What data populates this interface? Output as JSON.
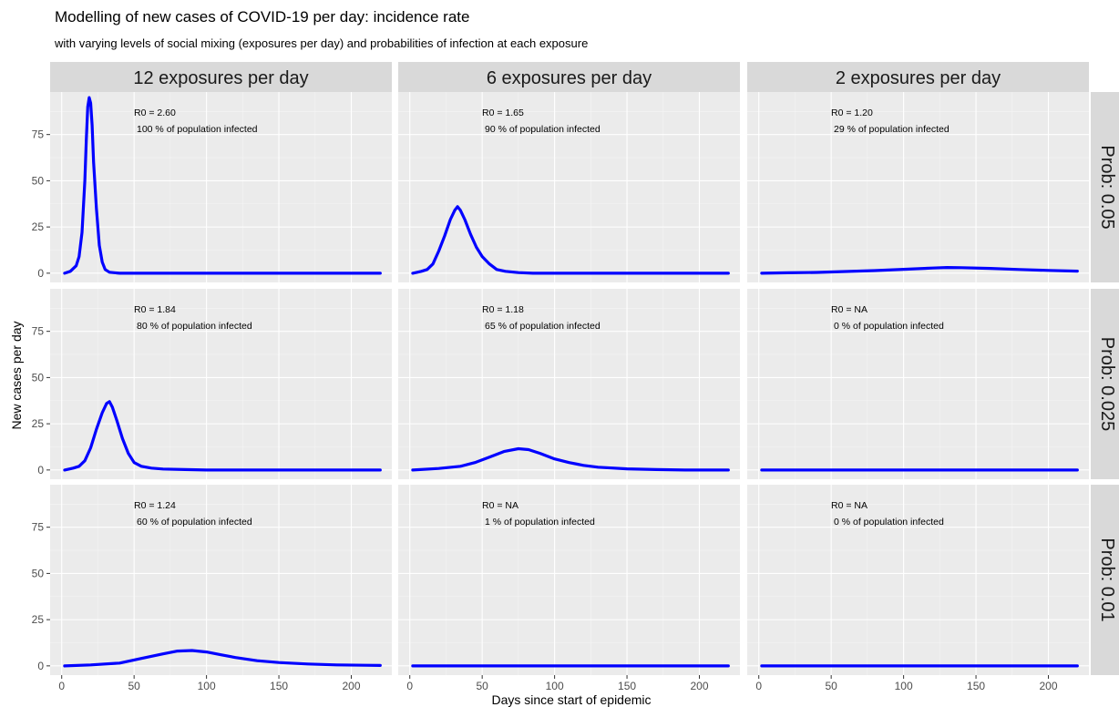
{
  "title": "Modelling of new cases of COVID-19 per day: incidence rate",
  "subtitle": "with varying levels of social mixing (exposures per day) and probabilities of infection at each exposure",
  "chart_data": {
    "type": "line",
    "facet_cols": [
      "12 exposures per day",
      "6 exposures per day",
      "2 exposures per day"
    ],
    "facet_rows": [
      "Prob: 0.05",
      "Prob: 0.025",
      "Prob: 0.01"
    ],
    "xlabel": "Days since start of epidemic",
    "ylabel": "New cases per day",
    "xlim": [
      -8,
      228
    ],
    "ylim": [
      -5,
      98
    ],
    "x_ticks": [
      0,
      50,
      100,
      150,
      200
    ],
    "y_ticks": [
      0,
      25,
      50,
      75
    ],
    "line_color": "#0000ff",
    "panel_bg": "#ebebeb",
    "strip_bg": "#d9d9d9",
    "panels": [
      {
        "row": 0,
        "col": 0,
        "r0": "R0 = 2.60",
        "infected": "100 % of population infected",
        "points": [
          [
            2,
            0
          ],
          [
            6,
            1
          ],
          [
            10,
            4
          ],
          [
            12,
            9
          ],
          [
            14,
            22
          ],
          [
            16,
            50
          ],
          [
            17,
            72
          ],
          [
            18,
            90
          ],
          [
            19,
            95
          ],
          [
            20,
            92
          ],
          [
            21,
            80
          ],
          [
            22,
            60
          ],
          [
            24,
            35
          ],
          [
            26,
            15
          ],
          [
            28,
            6
          ],
          [
            30,
            2
          ],
          [
            33,
            0.5
          ],
          [
            40,
            0
          ],
          [
            220,
            0
          ]
        ]
      },
      {
        "row": 0,
        "col": 1,
        "r0": "R0 = 1.65",
        "infected": "90 % of population infected",
        "points": [
          [
            2,
            0
          ],
          [
            8,
            1
          ],
          [
            12,
            2
          ],
          [
            16,
            5
          ],
          [
            20,
            12
          ],
          [
            24,
            20
          ],
          [
            28,
            29
          ],
          [
            31,
            34
          ],
          [
            33,
            36
          ],
          [
            35,
            34
          ],
          [
            38,
            29
          ],
          [
            42,
            21
          ],
          [
            46,
            14
          ],
          [
            50,
            9
          ],
          [
            55,
            5
          ],
          [
            60,
            2
          ],
          [
            66,
            1
          ],
          [
            75,
            0.3
          ],
          [
            85,
            0
          ],
          [
            220,
            0
          ]
        ]
      },
      {
        "row": 0,
        "col": 2,
        "r0": "R0 = 1.20",
        "infected": "29 % of population infected",
        "points": [
          [
            2,
            0
          ],
          [
            20,
            0.2
          ],
          [
            40,
            0.4
          ],
          [
            60,
            0.9
          ],
          [
            80,
            1.4
          ],
          [
            100,
            2.1
          ],
          [
            120,
            2.8
          ],
          [
            130,
            3.1
          ],
          [
            140,
            3.0
          ],
          [
            160,
            2.6
          ],
          [
            180,
            2.0
          ],
          [
            200,
            1.5
          ],
          [
            220,
            1.1
          ]
        ]
      },
      {
        "row": 1,
        "col": 0,
        "r0": "R0 = 1.84",
        "infected": "80 % of population infected",
        "points": [
          [
            2,
            0
          ],
          [
            8,
            1
          ],
          [
            12,
            2
          ],
          [
            16,
            5
          ],
          [
            20,
            12
          ],
          [
            24,
            22
          ],
          [
            28,
            31
          ],
          [
            31,
            36
          ],
          [
            33,
            37
          ],
          [
            35,
            34
          ],
          [
            38,
            27
          ],
          [
            42,
            17
          ],
          [
            46,
            9
          ],
          [
            50,
            4
          ],
          [
            55,
            2
          ],
          [
            62,
            1
          ],
          [
            70,
            0.5
          ],
          [
            85,
            0.2
          ],
          [
            100,
            0
          ],
          [
            220,
            0
          ]
        ]
      },
      {
        "row": 1,
        "col": 1,
        "r0": "R0 = 1.18",
        "infected": "65 % of population infected",
        "points": [
          [
            2,
            0
          ],
          [
            20,
            0.8
          ],
          [
            35,
            2
          ],
          [
            45,
            4
          ],
          [
            55,
            7
          ],
          [
            65,
            10
          ],
          [
            75,
            11.5
          ],
          [
            82,
            11
          ],
          [
            90,
            9
          ],
          [
            100,
            6
          ],
          [
            110,
            4
          ],
          [
            120,
            2.5
          ],
          [
            130,
            1.5
          ],
          [
            150,
            0.6
          ],
          [
            170,
            0.2
          ],
          [
            190,
            0
          ],
          [
            220,
            0
          ]
        ]
      },
      {
        "row": 1,
        "col": 2,
        "r0": "R0 =   NA",
        "infected": "0 % of population infected",
        "points": [
          [
            2,
            0
          ],
          [
            220,
            0
          ]
        ]
      },
      {
        "row": 2,
        "col": 0,
        "r0": "R0 = 1.24",
        "infected": "60 % of population infected",
        "points": [
          [
            2,
            0
          ],
          [
            20,
            0.5
          ],
          [
            40,
            1.5
          ],
          [
            55,
            4
          ],
          [
            70,
            6.5
          ],
          [
            80,
            8
          ],
          [
            90,
            8.3
          ],
          [
            100,
            7.5
          ],
          [
            110,
            6
          ],
          [
            120,
            4.5
          ],
          [
            135,
            2.8
          ],
          [
            150,
            1.8
          ],
          [
            170,
            1
          ],
          [
            190,
            0.5
          ],
          [
            210,
            0.3
          ],
          [
            220,
            0.2
          ]
        ]
      },
      {
        "row": 2,
        "col": 1,
        "r0": "R0 =   NA",
        "infected": "1 % of population infected",
        "points": [
          [
            2,
            0
          ],
          [
            220,
            0
          ]
        ]
      },
      {
        "row": 2,
        "col": 2,
        "r0": "R0 =   NA",
        "infected": "0 % of population infected",
        "points": [
          [
            2,
            0
          ],
          [
            220,
            0
          ]
        ]
      }
    ]
  }
}
